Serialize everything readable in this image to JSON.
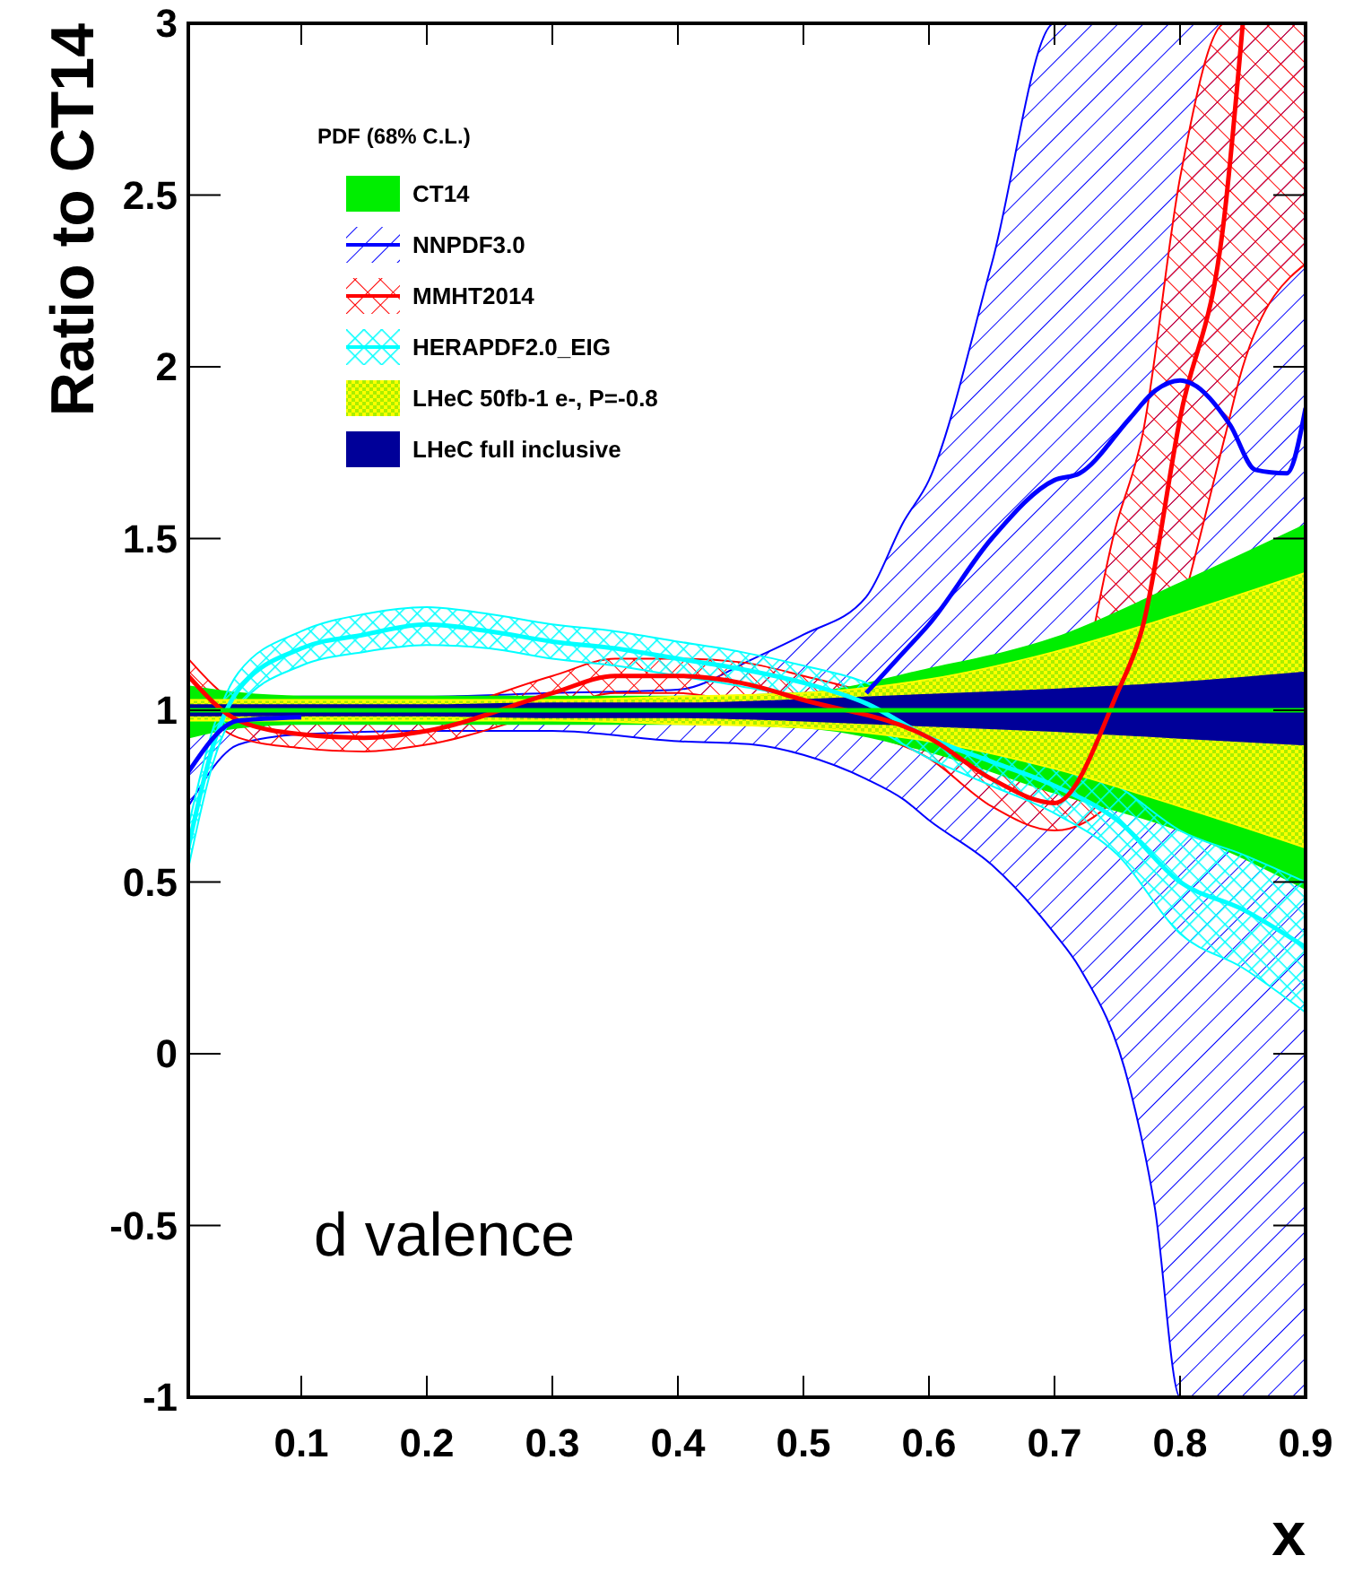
{
  "chart_data": {
    "type": "line",
    "xlabel": "x",
    "ylabel": "Ratio to CT14",
    "legend_title": "PDF (68% C.L.)",
    "legend": "top left",
    "grid": false,
    "marker": "none",
    "annotations": [
      "d valence"
    ],
    "xlim": [
      0.01,
      0.9
    ],
    "xticks": [
      0.1,
      0.2,
      0.3,
      0.4,
      0.5,
      0.6,
      0.7,
      0.8,
      0.9
    ],
    "ylim": [
      -1,
      3
    ],
    "yticks": [
      -1,
      -0.5,
      0,
      0.5,
      1,
      1.5,
      2,
      2.5,
      3
    ],
    "x": [
      0.01,
      0.05,
      0.1,
      0.2,
      0.3,
      0.4,
      0.5,
      0.6,
      0.7,
      0.8,
      0.9
    ],
    "series": [
      {
        "name": "CT14",
        "color": "#00ee00",
        "values": [
          1,
          1,
          1,
          1,
          1,
          1,
          1,
          1,
          1,
          1,
          1
        ],
        "lower": [
          0.92,
          0.95,
          0.96,
          0.96,
          0.96,
          0.96,
          0.95,
          0.88,
          0.76,
          0.65,
          0.48
        ],
        "upper": [
          1.07,
          1.05,
          1.04,
          1.04,
          1.04,
          1.04,
          1.05,
          1.12,
          1.21,
          1.37,
          1.54
        ]
      },
      {
        "name": "NNPDF3.0",
        "color": "#0000ff",
        "x": [
          0.01,
          0.05,
          0.1,
          0.2,
          0.3,
          0.4,
          0.46,
          0.5,
          0.55,
          0.58,
          0.6,
          0.65,
          0.7,
          0.72,
          0.76,
          0.78,
          0.8,
          0.81,
          0.84,
          0.86,
          0.885,
          0.9
        ],
        "values": [
          0.82,
          0.97,
          0.98,
          null,
          null,
          null,
          null,
          null,
          1.05,
          1.17,
          1.25,
          1.5,
          1.67,
          1.69,
          1.85,
          1.93,
          1.96,
          1.95,
          1.83,
          1.7,
          1.69,
          1.88
        ],
        "lower": [
          0.72,
          0.9,
          0.93,
          0.94,
          0.94,
          0.91,
          0.9,
          0.87,
          0.8,
          0.74,
          0.68,
          0.55,
          0.35,
          0.25,
          -0.1,
          -0.45,
          -1,
          -1,
          -1,
          -1,
          -1,
          -1
        ],
        "upper": [
          0.92,
          1.02,
          1.04,
          1.04,
          1.05,
          1.06,
          1.15,
          1.22,
          1.33,
          1.55,
          1.67,
          2.3,
          3,
          3,
          3,
          3,
          3,
          3,
          3,
          3,
          3,
          3
        ]
      },
      {
        "name": "MMHT2014",
        "color": "#ff0000",
        "x": [
          0.01,
          0.05,
          0.1,
          0.15,
          0.2,
          0.3,
          0.35,
          0.4,
          0.45,
          0.5,
          0.6,
          0.65,
          0.7,
          0.75,
          0.77,
          0.8,
          0.836,
          0.85,
          0.9
        ],
        "values": [
          1.1,
          0.97,
          0.93,
          0.92,
          0.94,
          1.05,
          1.1,
          1.1,
          1.08,
          1.03,
          0.92,
          0.8,
          0.73,
          1.05,
          1.24,
          1.85,
          2.46,
          3,
          null
        ],
        "lower": [
          1.04,
          0.92,
          0.89,
          0.88,
          0.9,
          1.0,
          1.05,
          1.05,
          1.02,
          0.97,
          0.86,
          0.72,
          0.65,
          0.75,
          0.9,
          1.28,
          1.8,
          2.0,
          2.3
        ],
        "upper": [
          1.15,
          1.02,
          0.98,
          0.97,
          0.99,
          1.1,
          1.15,
          1.15,
          1.14,
          1.1,
          0.99,
          0.9,
          0.85,
          1.55,
          1.8,
          2.55,
          3,
          3,
          3
        ]
      },
      {
        "name": "HERAPDF2.0_EIG",
        "color": "#00ffff",
        "x": [
          0.01,
          0.03,
          0.05,
          0.1,
          0.15,
          0.2,
          0.25,
          0.3,
          0.35,
          0.4,
          0.45,
          0.5,
          0.55,
          0.6,
          0.65,
          0.7,
          0.75,
          0.8,
          0.85,
          0.9
        ],
        "values": [
          0.6,
          0.9,
          1.06,
          1.18,
          1.22,
          1.25,
          1.23,
          1.2,
          1.18,
          1.15,
          1.12,
          1.08,
          1.02,
          0.92,
          0.85,
          0.78,
          0.68,
          0.5,
          0.42,
          0.31
        ],
        "lower": [
          0.54,
          0.85,
          1.01,
          1.13,
          1.17,
          1.19,
          1.18,
          1.15,
          1.13,
          1.1,
          1.07,
          1.03,
          0.96,
          0.86,
          0.78,
          0.7,
          0.58,
          0.35,
          0.25,
          0.12
        ],
        "upper": [
          0.66,
          0.95,
          1.11,
          1.23,
          1.28,
          1.3,
          1.28,
          1.25,
          1.23,
          1.2,
          1.17,
          1.13,
          1.08,
          0.98,
          0.92,
          0.86,
          0.78,
          0.65,
          0.58,
          0.5
        ]
      },
      {
        "name": "LHeC 50fb-1 e-, P=-0.8",
        "color": "#ffff00",
        "values": [
          null,
          null,
          null,
          null,
          null,
          null,
          null,
          null,
          null,
          null,
          null
        ],
        "lower": [
          0.97,
          0.97,
          0.97,
          0.97,
          0.97,
          0.96,
          0.95,
          0.91,
          0.83,
          0.72,
          0.6
        ],
        "upper": [
          1.03,
          1.03,
          1.03,
          1.03,
          1.03,
          1.04,
          1.05,
          1.09,
          1.17,
          1.28,
          1.4
        ]
      },
      {
        "name": "LHeC full inclusive",
        "color": "#000099",
        "values": [
          null,
          null,
          null,
          null,
          null,
          null,
          null,
          null,
          null,
          null,
          null
        ],
        "lower": [
          0.985,
          0.985,
          0.985,
          0.985,
          0.98,
          0.98,
          0.97,
          0.955,
          0.94,
          0.92,
          0.9
        ],
        "upper": [
          1.015,
          1.015,
          1.015,
          1.015,
          1.02,
          1.02,
          1.03,
          1.045,
          1.06,
          1.08,
          1.11
        ]
      }
    ]
  }
}
